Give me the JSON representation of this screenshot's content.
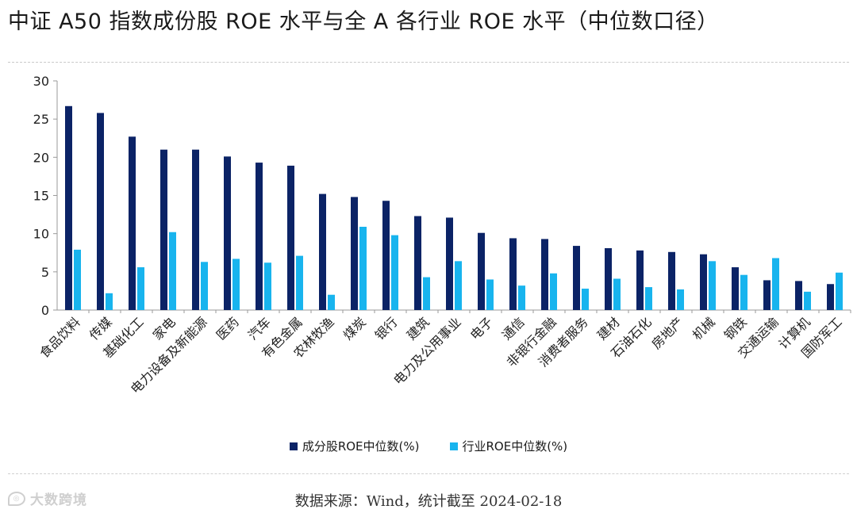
{
  "title": "中证 A50 指数成份股 ROE 水平与全 A 各行业 ROE 水平（中位数口径）",
  "source": "数据来源：Wind，统计截至 2024-02-18",
  "watermark": "大数跨境",
  "colors": {
    "constituent": "#0b2366",
    "industry": "#18b4ee",
    "axis": "#9a9a9a"
  },
  "chart_data": {
    "type": "bar",
    "title": "中证 A50 指数成份股 ROE 水平与全 A 各行业 ROE 水平（中位数口径）",
    "xlabel": "",
    "ylabel": "",
    "ylim": [
      0,
      30
    ],
    "yticks": [
      0,
      5,
      10,
      15,
      20,
      25,
      30
    ],
    "grid": false,
    "legend_position": "bottom",
    "categories": [
      "食品饮料",
      "传媒",
      "基础化工",
      "家电",
      "电力设备及新能源",
      "医药",
      "汽车",
      "有色金属",
      "农林牧渔",
      "煤炭",
      "银行",
      "建筑",
      "电力及公用事业",
      "电子",
      "通信",
      "非银行金融",
      "消费者服务",
      "建材",
      "石油石化",
      "房地产",
      "机械",
      "钢铁",
      "交通运输",
      "计算机",
      "国防军工"
    ],
    "series": [
      {
        "name": "成分股ROE中位数(%)",
        "values": [
          26.7,
          25.8,
          22.7,
          21.0,
          21.0,
          20.1,
          19.3,
          18.9,
          15.2,
          14.8,
          14.3,
          12.3,
          12.1,
          10.1,
          9.4,
          9.3,
          8.4,
          8.1,
          7.8,
          7.6,
          7.3,
          5.6,
          3.9,
          3.8,
          3.4
        ]
      },
      {
        "name": "行业ROE中位数(%)",
        "values": [
          7.9,
          2.2,
          5.6,
          10.2,
          6.3,
          6.7,
          6.2,
          7.1,
          2.0,
          10.9,
          9.8,
          4.3,
          6.4,
          4.0,
          3.2,
          4.8,
          2.8,
          4.1,
          3.0,
          2.7,
          6.4,
          4.6,
          6.8,
          2.4,
          4.9
        ]
      }
    ]
  }
}
